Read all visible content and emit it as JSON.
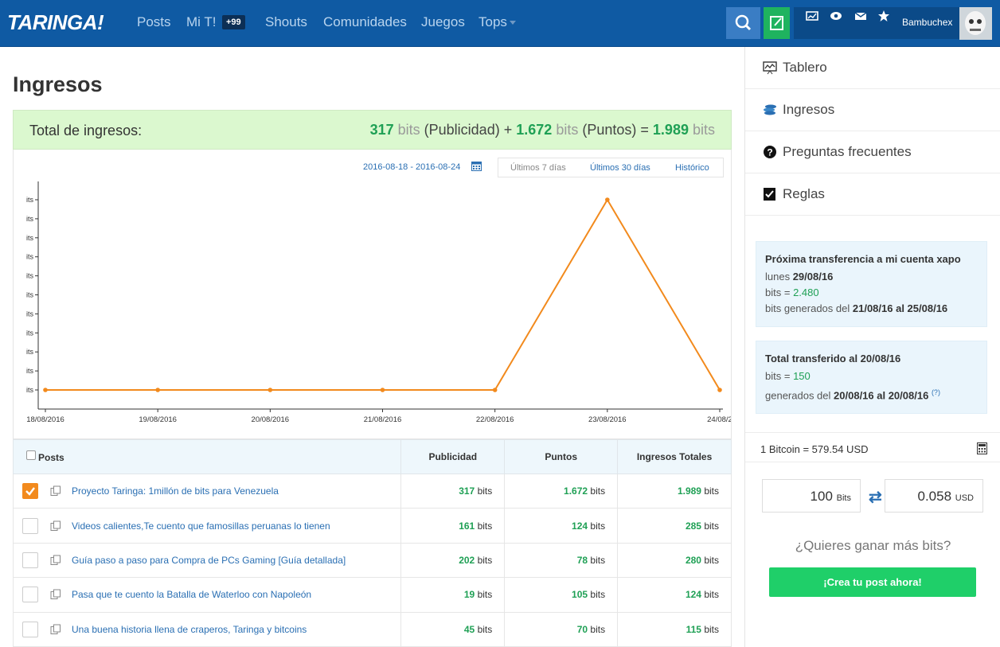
{
  "header": {
    "logo": "TARINGA!",
    "nav": [
      "Posts",
      "Mi T!",
      "Shouts",
      "Comunidades",
      "Juegos",
      "Tops"
    ],
    "mi_badge": "+99",
    "username": "Bambuchex"
  },
  "page": {
    "title": "Ingresos",
    "total": {
      "label": "Total de ingresos:",
      "pub_value": "317",
      "pub_label": "(Publicidad)",
      "pts_value": "1.672",
      "pts_label": "(Puntos)",
      "total_value": "1.989",
      "unit": "bits",
      "plus": "+",
      "equals": "="
    },
    "date_range": "2016-08-18 - 2016-08-24",
    "range_tabs": [
      "Últimos 7 días",
      "Últimos 30 días",
      "Histórico"
    ]
  },
  "chart_data": {
    "type": "line",
    "x": [
      "18/08/2016",
      "19/08/2016",
      "20/08/2016",
      "21/08/2016",
      "22/08/2016",
      "23/08/2016",
      "24/08/2"
    ],
    "values": [
      0,
      0,
      0,
      0,
      0,
      1,
      0
    ],
    "y_tick_labels": [
      "its",
      "its",
      "its",
      "its",
      "its",
      "its",
      "its",
      "its",
      "its",
      "its",
      "its"
    ],
    "color": "#f28a1d",
    "grid": false
  },
  "table": {
    "headers": [
      "Posts",
      "Publicidad",
      "Puntos",
      "Ingresos Totales"
    ],
    "unit": "bits",
    "rows": [
      {
        "title": "Proyecto Taringa: 1millón de bits para Venezuela",
        "pub": "317",
        "pts": "1.672",
        "total": "1.989",
        "checked": true
      },
      {
        "title": "Videos calientes,Te cuento que famosillas peruanas lo tienen",
        "pub": "161",
        "pts": "124",
        "total": "285",
        "checked": false
      },
      {
        "title": "Guía paso a paso para Compra de PCs Gaming [Guía detallada]",
        "pub": "202",
        "pts": "78",
        "total": "280",
        "checked": false
      },
      {
        "title": "Pasa que te cuento la Batalla de Waterloo con Napoleón",
        "pub": "19",
        "pts": "105",
        "total": "124",
        "checked": false
      },
      {
        "title": "Una buena historia llena de craperos, Taringa y bitcoins",
        "pub": "45",
        "pts": "70",
        "total": "115",
        "checked": false
      }
    ]
  },
  "sidebar": {
    "menu": [
      "Tablero",
      "Ingresos",
      "Preguntas frecuentes",
      "Reglas"
    ],
    "next_transfer": {
      "title": "Próxima transferencia a mi cuenta xapo",
      "day_label": "lunes",
      "date": "29/08/16",
      "bits_label": "bits =",
      "bits": "2.480",
      "gen_label": "bits generados del",
      "gen_range": "21/08/16 al 25/08/16"
    },
    "total_transfer": {
      "title": "Total transferido al 20/08/16",
      "bits_label": "bits =",
      "bits": "150",
      "gen_label": "generados del",
      "gen_range": "20/08/16 al 20/08/16",
      "help": "(?)"
    },
    "bitcoin_rate": "1 Bitcoin = 579.54 USD",
    "converter": {
      "bits_value": "100",
      "bits_unit": "Bits",
      "usd_value": "0.058",
      "usd_unit": "USD"
    },
    "ask": "¿Quieres ganar más bits?",
    "cta": "¡Crea tu post ahora!"
  },
  "colors": {
    "header": "#0f5aa3",
    "accent_green": "#1fa055",
    "chart_line": "#f28a1d",
    "link": "#2a6fb3"
  }
}
